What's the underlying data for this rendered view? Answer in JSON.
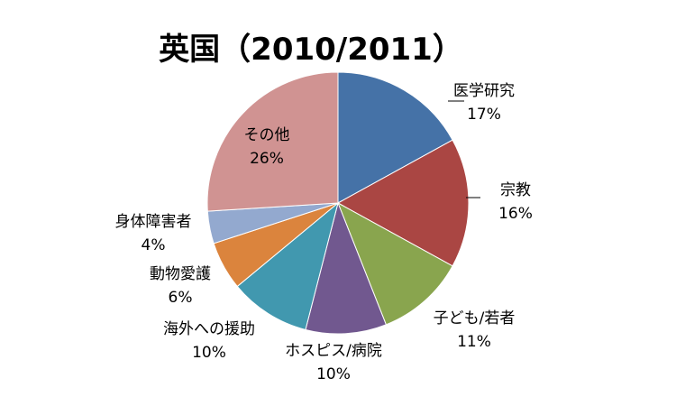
{
  "chart_data": {
    "type": "pie",
    "title": "英国（2010/2011）",
    "slices": [
      {
        "label": "医学研究",
        "value": 17,
        "value_label": "17%",
        "color": "#4572A7"
      },
      {
        "label": "宗教",
        "value": 16,
        "value_label": "16%",
        "color": "#AA4643"
      },
      {
        "label": "子ども/若者",
        "value": 11,
        "value_label": "11%",
        "color": "#89A54E"
      },
      {
        "label": "ホスピス/病院",
        "value": 10,
        "value_label": "10%",
        "color": "#71588F"
      },
      {
        "label": "海外への援助",
        "value": 10,
        "value_label": "10%",
        "color": "#4198AF"
      },
      {
        "label": "動物愛護",
        "value": 6,
        "value_label": "6%",
        "color": "#DB843D"
      },
      {
        "label": "身体障害者",
        "value": 4,
        "value_label": "4%",
        "color": "#93A9CF"
      },
      {
        "label": "その他",
        "value": 26,
        "value_label": "26%",
        "color": "#D09392"
      }
    ],
    "start_angle_deg": 0,
    "direction": "clockwise",
    "legend": "none"
  }
}
